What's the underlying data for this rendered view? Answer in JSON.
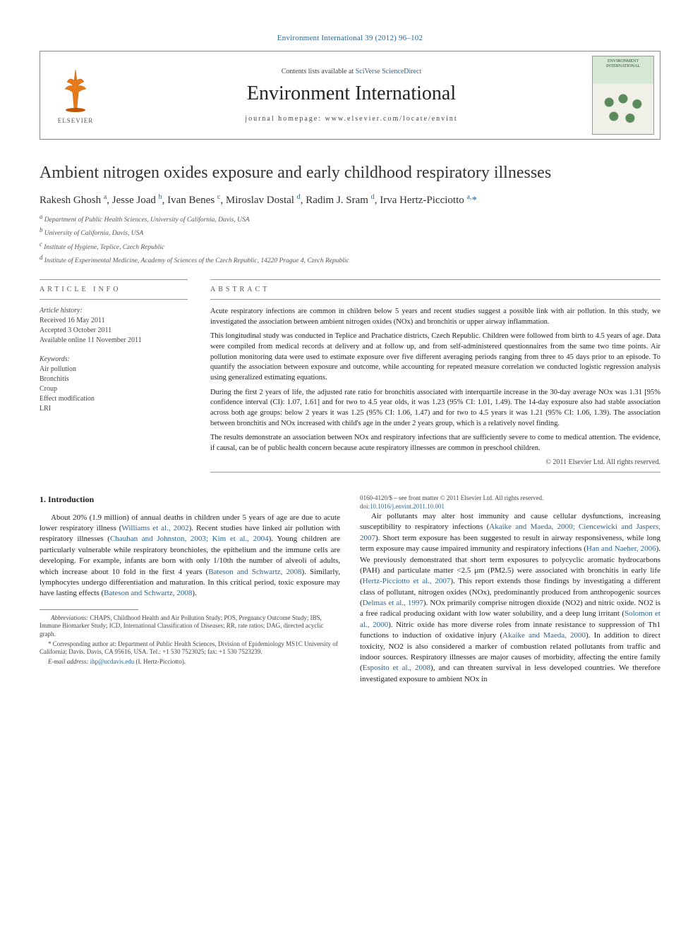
{
  "journal_ref": "Environment International 39 (2012) 96–102",
  "header": {
    "contents_prefix": "Contents lists available at ",
    "contents_link": "SciVerse ScienceDirect",
    "journal_name": "Environment International",
    "homepage_prefix": "journal homepage: ",
    "homepage": "www.elsevier.com/locate/envint",
    "elsevier_label": "ELSEVIER",
    "cover_title": "ENVIRONMENT INTERNATIONAL"
  },
  "title": "Ambient nitrogen oxides exposure and early childhood respiratory illnesses",
  "authors_html": "Rakesh Ghosh <sup>a</sup>, Jesse Joad <sup>b</sup>, Ivan Benes <sup>c</sup>, Miroslav Dostal <sup>d</sup>, Radim J. Sram <sup>d</sup>, Irva Hertz-Picciotto <sup>a,</sup><span class='star'>*</span>",
  "affiliations": [
    "a Department of Public Health Sciences, University of California, Davis, USA",
    "b University of California, Davis, USA",
    "c Institute of Hygiene, Teplice, Czech Republic",
    "d Institute of Experimental Medicine, Academy of Sciences of the Czech Republic, 14220 Prague 4, Czech Republic"
  ],
  "article_info": {
    "section_label": "ARTICLE INFO",
    "history_label": "Article history:",
    "history": [
      "Received 16 May 2011",
      "Accepted 3 October 2011",
      "Available online 11 November 2011"
    ],
    "keywords_label": "Keywords:",
    "keywords": [
      "Air pollution",
      "Bronchitis",
      "Croup",
      "Effect modification",
      "LRI"
    ]
  },
  "abstract": {
    "label": "ABSTRACT",
    "paragraphs": [
      "Acute respiratory infections are common in children below 5 years and recent studies suggest a possible link with air pollution. In this study, we investigated the association between ambient nitrogen oxides (NOx) and bronchitis or upper airway inflammation.",
      "This longitudinal study was conducted in Teplice and Prachatice districts, Czech Republic. Children were followed from birth to 4.5 years of age. Data were compiled from medical records at delivery and at follow up, and from self-administered questionnaires from the same two time points. Air pollution monitoring data were used to estimate exposure over five different averaging periods ranging from three to 45 days prior to an episode. To quantify the association between exposure and outcome, while accounting for repeated measure correlation we conducted logistic regression analysis using generalized estimating equations.",
      "During the first 2 years of life, the adjusted rate ratio for bronchitis associated with interquartile increase in the 30-day average NOx was 1.31 [95% confidence interval (CI): 1.07, 1.61] and for two to 4.5 year olds, it was 1.23 (95% CI: 1.01, 1.49). The 14-day exposure also had stable association across both age groups: below 2 years it was 1.25 (95% CI: 1.06, 1.47) and for two to 4.5 years it was 1.21 (95% CI: 1.06, 1.39). The association between bronchitis and NOx increased with child's age in the under 2 years group, which is a relatively novel finding.",
      "The results demonstrate an association between NOx and respiratory infections that are sufficiently severe to come to medical attention. The evidence, if causal, can be of public health concern because acute respiratory illnesses are common in preschool children."
    ],
    "copyright": "© 2011 Elsevier Ltd. All rights reserved."
  },
  "body": {
    "heading": "1. Introduction",
    "p1_pre": "About 20% (1.9 million) of annual deaths in children under 5 years of age are due to acute lower respiratory illness (",
    "p1_ref1": "Williams et al., 2002",
    "p1_mid1": "). Recent studies have linked air pollution with respiratory illnesses (",
    "p1_ref2": "Chauhan and Johnston, 2003; Kim et al., 2004",
    "p1_mid2": "). Young children are particularly vulnerable while respiratory bronchioles, the epithelium and the immune cells are developing. For example, infants are born with only 1/10th the number of alveoli of adults, which increase about 10 fold in the first 4 years (",
    "p1_ref3": "Bateson and Schwartz, 2008",
    "p1_mid3": "). Similarly, lymphocytes undergo differentiation and maturation. In this critical period, toxic exposure may have lasting effects (",
    "p1_ref4": "Bateson and Schwartz, 2008",
    "p1_post": ").",
    "p2_pre": "Air pollutants may alter host immunity and cause cellular dysfunctions, increasing susceptibility to respiratory infections (",
    "p2_ref1": "Akaike and Maeda, 2000; Ciencewicki and Jaspers, 2007",
    "p2_mid1": "). Short term exposure has been suggested to result in airway responsiveness, while long term exposure may cause impaired immunity and respiratory infections (",
    "p2_ref2": "Han and Naeher, 2006",
    "p2_mid2": "). We previously demonstrated that short term exposures to polycyclic aromatic hydrocarbons (PAH) and particulate matter <2.5 μm (PM2.5) were associated with bronchitis in early life (",
    "p2_ref3": "Hertz-Picciotto et al., 2007",
    "p2_mid3": "). This report extends those findings by investigating a different class of pollutant, nitrogen oxides (NOx), predominantly produced from anthropogenic sources (",
    "p2_ref4": "Delmas et al., 1997",
    "p2_mid4": "). NOx primarily comprise nitrogen dioxide (NO2) and nitric oxide. NO2 is a free radical producing oxidant with low water solubility, and a deep lung irritant (",
    "p2_ref5": "Solomon et al., 2000",
    "p2_mid5": "). Nitric oxide has more diverse roles from innate resistance to suppression of Th1 functions to induction of oxidative injury (",
    "p2_ref6": "Akaike and Maeda, 2000",
    "p2_mid6": "). In addition to direct toxicity, NO2 is also considered a marker of combustion related pollutants from traffic and indoor sources. Respiratory illnesses are major causes of morbidity, affecting the entire family (",
    "p2_ref7": "Esposito et al., 2008",
    "p2_post": "), and can threaten survival in less developed countries. We therefore investigated exposure to ambient NOx in"
  },
  "footnotes": {
    "abbrev_label": "Abbreviations:",
    "abbrev_text": " CHAPS, Childhood Health and Air Pollution Study; POS, Pregnancy Outcome Study; IBS, Immune Biomarker Study; ICD, International Classification of Diseases; RR, rate ratios; DAG, directed acyclic graph.",
    "corr_star": "*",
    "corr_text": " Corresponding author at: Department of Public Health Sciences, Division of Epidemiology MS1C University of California; Davis. Davis, CA 95616, USA. Tel.: +1 530 7523025; fax: +1 530 7523239.",
    "email_label": "E-mail address: ",
    "email": "ihp@ucdavis.edu",
    "email_who": " (I. Hertz-Picciotto)."
  },
  "footer": {
    "line1": "0160-4120/$ – see front matter © 2011 Elsevier Ltd. All rights reserved.",
    "doi_label": "doi:",
    "doi": "10.1016/j.envint.2011.10.001"
  }
}
